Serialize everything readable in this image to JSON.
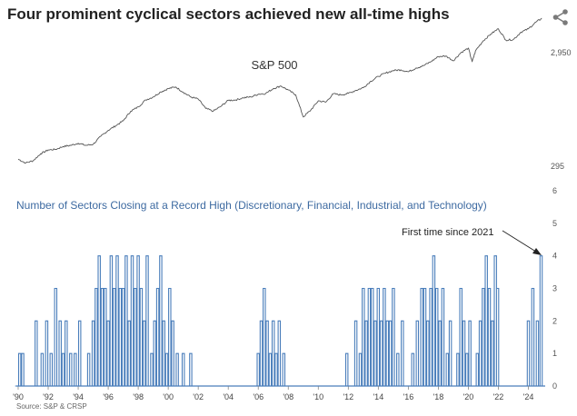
{
  "title": "Four prominent cyclical sectors achieved new all-time highs",
  "source": "Source: S&P & CRSP",
  "icons": {
    "share": "share-icon"
  },
  "chart_data": [
    {
      "type": "line",
      "label": "S&P 500",
      "yscale": "log",
      "ylim": [
        295,
        5500
      ],
      "yticks": [
        "2,950",
        "295"
      ],
      "xlim": [
        1990.0,
        2025.0
      ],
      "color": "#555555",
      "x": [
        1990.0,
        1990.5,
        1991.0,
        1991.5,
        1992.0,
        1992.5,
        1993.0,
        1993.5,
        1994.0,
        1994.5,
        1995.0,
        1995.5,
        1996.0,
        1996.5,
        1997.0,
        1997.5,
        1998.0,
        1998.5,
        1999.0,
        1999.5,
        2000.0,
        2000.5,
        2001.0,
        2001.5,
        2002.0,
        2002.5,
        2003.0,
        2003.5,
        2004.0,
        2004.5,
        2005.0,
        2005.5,
        2006.0,
        2006.5,
        2007.0,
        2007.5,
        2008.0,
        2008.5,
        2009.0,
        2009.5,
        2010.0,
        2010.5,
        2011.0,
        2011.5,
        2012.0,
        2012.5,
        2013.0,
        2013.5,
        2014.0,
        2014.5,
        2015.0,
        2015.5,
        2016.0,
        2016.5,
        2017.0,
        2017.5,
        2018.0,
        2018.5,
        2019.0,
        2019.5,
        2020.0,
        2020.25,
        2020.5,
        2021.0,
        2021.5,
        2022.0,
        2022.5,
        2023.0,
        2023.5,
        2024.0,
        2024.5,
        2024.9
      ],
      "y": [
        340,
        315,
        330,
        380,
        410,
        415,
        440,
        450,
        470,
        450,
        460,
        540,
        610,
        670,
        740,
        900,
        980,
        1130,
        1200,
        1330,
        1420,
        1470,
        1320,
        1200,
        1150,
        950,
        900,
        990,
        1120,
        1130,
        1180,
        1200,
        1270,
        1290,
        1420,
        1500,
        1380,
        1250,
        800,
        920,
        1110,
        1080,
        1280,
        1250,
        1290,
        1370,
        1450,
        1650,
        1820,
        1950,
        2050,
        2080,
        2000,
        2150,
        2260,
        2450,
        2720,
        2750,
        2500,
        2940,
        3230,
        2450,
        3100,
        3750,
        4300,
        4770,
        3800,
        3840,
        4450,
        4770,
        5460,
        5900
      ]
    },
    {
      "type": "bar",
      "title": "Number of Sectors Closing at a Record High (Discretionary, Financial, Industrial, and Technology)",
      "annotation": "First time since 2021",
      "ylim": [
        0,
        6
      ],
      "yticks": [
        "6",
        "5",
        "4",
        "3",
        "2",
        "1",
        "0"
      ],
      "xticks": [
        "'90",
        "'92",
        "'94",
        "'96",
        "'98",
        "'00",
        "'02",
        "'04",
        "'06",
        "'08",
        "'10",
        "'12",
        "'14",
        "'16",
        "'18",
        "'20",
        "'22",
        "'24"
      ],
      "color": "#4a7ebb",
      "x": [
        1990.1,
        1990.3,
        1991.2,
        1991.6,
        1991.9,
        1992.2,
        1992.5,
        1992.8,
        1993.0,
        1993.2,
        1993.5,
        1993.8,
        1994.1,
        1994.7,
        1995.0,
        1995.2,
        1995.4,
        1995.6,
        1995.8,
        1996.0,
        1996.2,
        1996.4,
        1996.6,
        1996.8,
        1997.0,
        1997.2,
        1997.4,
        1997.6,
        1997.8,
        1998.0,
        1998.2,
        1998.4,
        1998.6,
        1998.9,
        1999.1,
        1999.3,
        1999.5,
        1999.7,
        1999.9,
        2000.1,
        2000.3,
        2000.6,
        2001.0,
        2001.5,
        2006.0,
        2006.2,
        2006.4,
        2006.6,
        2006.8,
        2007.0,
        2007.2,
        2007.4,
        2007.7,
        2011.9,
        2012.5,
        2012.8,
        2013.0,
        2013.2,
        2013.4,
        2013.6,
        2013.8,
        2014.0,
        2014.2,
        2014.4,
        2014.6,
        2014.8,
        2015.0,
        2015.3,
        2015.6,
        2016.3,
        2016.6,
        2016.9,
        2017.1,
        2017.3,
        2017.5,
        2017.7,
        2017.9,
        2018.1,
        2018.3,
        2018.6,
        2018.8,
        2019.3,
        2019.5,
        2019.7,
        2019.9,
        2020.1,
        2020.6,
        2020.8,
        2021.0,
        2021.2,
        2021.4,
        2021.6,
        2021.8,
        2021.95,
        2024.0,
        2024.3,
        2024.6,
        2024.85
      ],
      "values": [
        1,
        1,
        2,
        1,
        2,
        1,
        3,
        2,
        1,
        2,
        1,
        1,
        2,
        1,
        2,
        3,
        4,
        3,
        3,
        2,
        4,
        3,
        4,
        3,
        3,
        4,
        2,
        4,
        3,
        4,
        3,
        2,
        4,
        1,
        2,
        3,
        4,
        2,
        1,
        3,
        2,
        1,
        1,
        1,
        1,
        2,
        3,
        2,
        1,
        2,
        1,
        2,
        1,
        1,
        2,
        1,
        3,
        2,
        3,
        3,
        2,
        3,
        2,
        3,
        2,
        2,
        3,
        1,
        2,
        1,
        2,
        3,
        3,
        2,
        3,
        4,
        3,
        2,
        3,
        1,
        2,
        1,
        3,
        2,
        1,
        2,
        1,
        2,
        3,
        4,
        3,
        2,
        4,
        3,
        2,
        3,
        2,
        4
      ]
    }
  ]
}
